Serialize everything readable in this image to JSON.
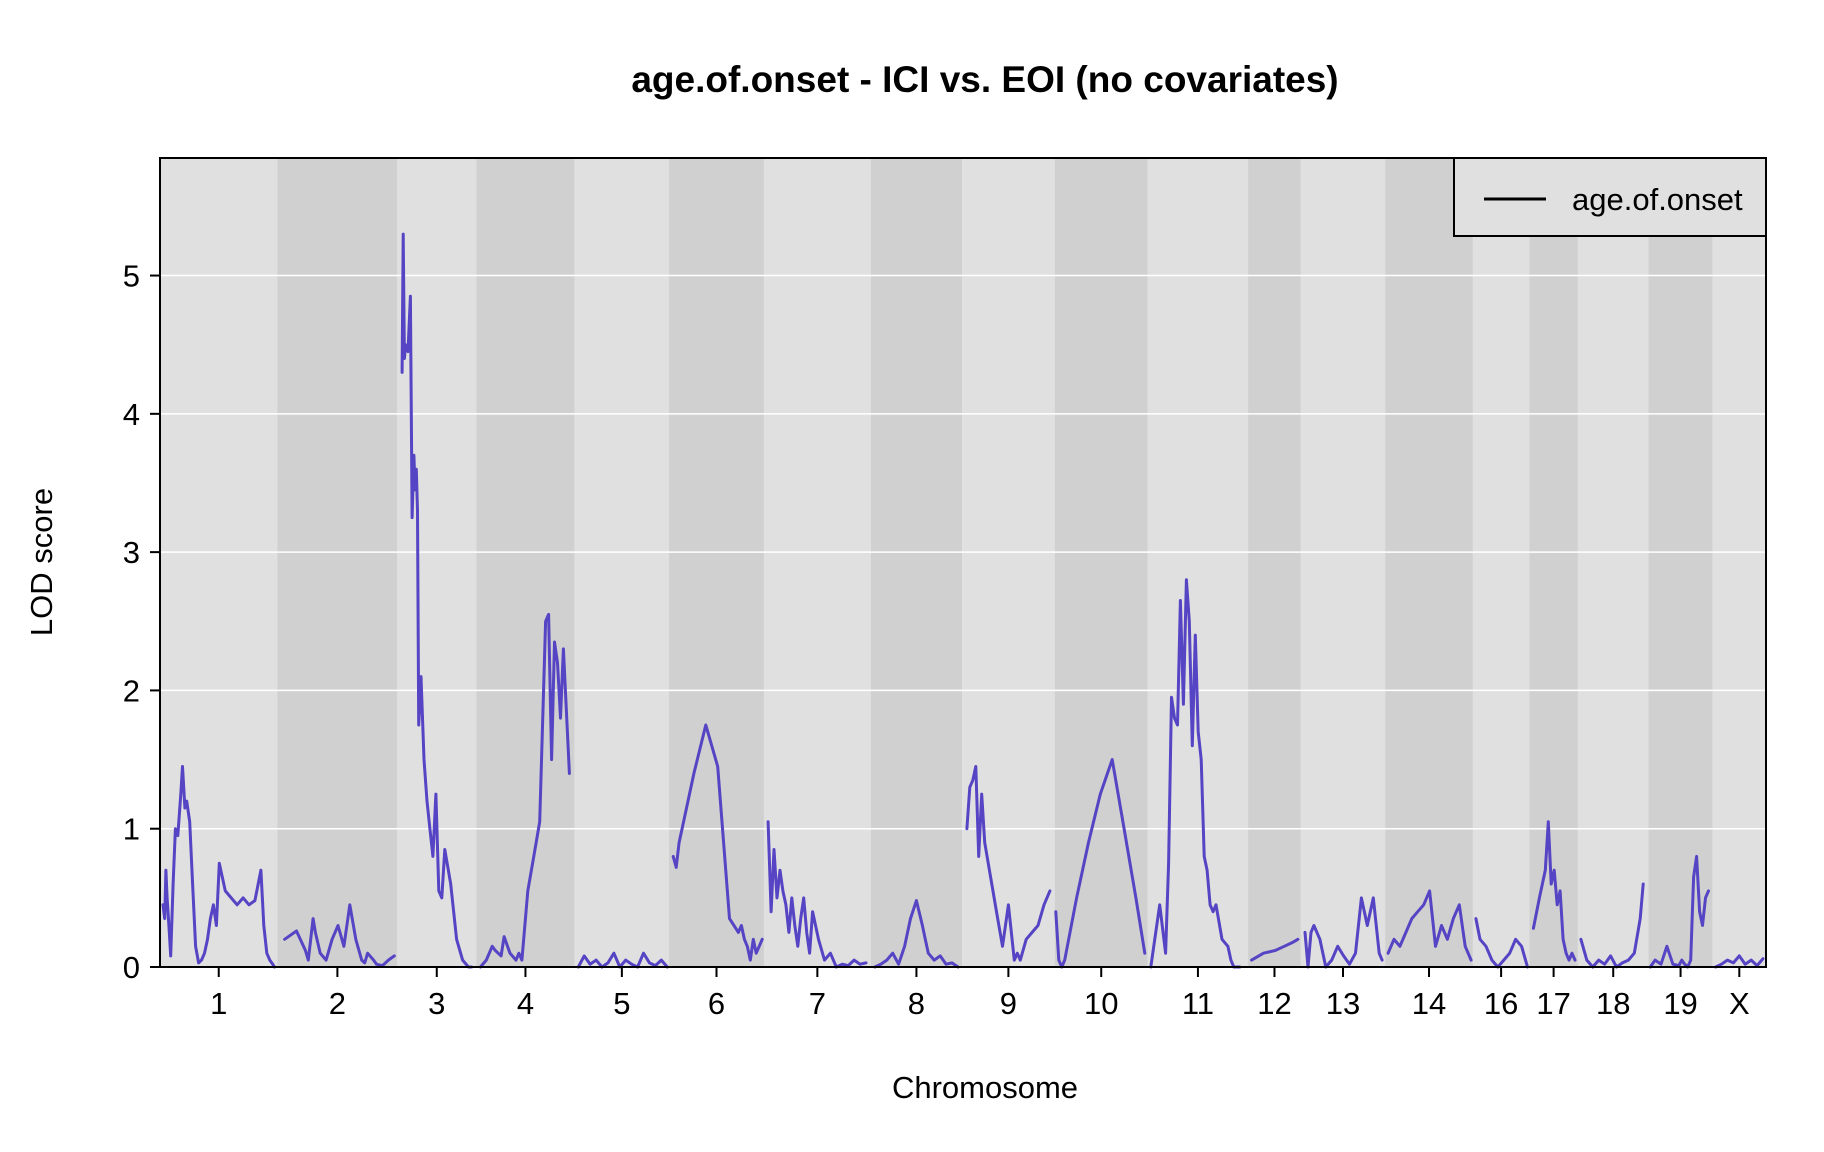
{
  "chart_data": {
    "type": "line",
    "title": "age.of.onset - ICI vs. EOI (no covariates)",
    "xlabel": "Chromosome",
    "ylabel": "LOD score",
    "ylim": [
      0,
      5.85
    ],
    "yticks": [
      0,
      1,
      2,
      3,
      4,
      5
    ],
    "grid": "horizontal",
    "legend": {
      "position": "top-right",
      "entries": [
        "age.of.onset"
      ]
    },
    "colors": {
      "line": "#5544c4",
      "band_light": "#e0e0e0",
      "band_dark": "#d0d0d0",
      "grid": "#ffffff",
      "legend_bg": "#e0e0e0"
    },
    "chromosomes": [
      {
        "name": "1",
        "start": 0,
        "end": 198.0
      },
      {
        "name": "2",
        "start": 198.0,
        "end": 400.0
      },
      {
        "name": "3",
        "start": 400.0,
        "end": 533.0
      },
      {
        "name": "4",
        "start": 533.0,
        "end": 699.0
      },
      {
        "name": "5",
        "start": 699.0,
        "end": 858.0
      },
      {
        "name": "6",
        "start": 858.0,
        "end": 1018.0
      },
      {
        "name": "7",
        "start": 1018.0,
        "end": 1198.0
      },
      {
        "name": "8",
        "start": 1198.0,
        "end": 1352.0
      },
      {
        "name": "9",
        "start": 1352.0,
        "end": 1508.0
      },
      {
        "name": "10",
        "start": 1508.0,
        "end": 1665.0
      },
      {
        "name": "11",
        "start": 1665.0,
        "end": 1834.0
      },
      {
        "name": "12",
        "start": 1834.0,
        "end": 1923.0
      },
      {
        "name": "13",
        "start": 1923.0,
        "end": 2065.0
      },
      {
        "name": "14",
        "start": 2065.0,
        "end": 2213.0
      },
      {
        "name": "16",
        "start": 2213.0,
        "end": 2308.0
      },
      {
        "name": "17",
        "start": 2308.0,
        "end": 2390.0
      },
      {
        "name": "18",
        "start": 2390.0,
        "end": 2509.0
      },
      {
        "name": "19",
        "start": 2509.0,
        "end": 2617.0
      },
      {
        "name": "X",
        "start": 2617.0,
        "end": 2707.0
      }
    ],
    "series": [
      {
        "name": "age.of.onset",
        "segments": [
          {
            "chr": "1",
            "x": [
              5,
              8,
              10,
              12,
              15,
              18,
              22,
              26,
              30,
              35,
              38,
              42,
              45,
              50,
              55,
              60,
              65,
              70,
              75,
              80,
              85,
              90,
              95,
              100,
              110,
              120,
              130,
              140,
              150,
              160,
              170,
              175,
              180,
              185,
              190,
              193
            ],
            "y": [
              0.45,
              0.35,
              0.7,
              0.5,
              0.3,
              0.08,
              0.6,
              1.0,
              0.95,
              1.25,
              1.45,
              1.15,
              1.2,
              1.05,
              0.6,
              0.15,
              0.03,
              0.05,
              0.1,
              0.2,
              0.35,
              0.45,
              0.3,
              0.75,
              0.55,
              0.5,
              0.45,
              0.5,
              0.45,
              0.48,
              0.7,
              0.3,
              0.1,
              0.05,
              0.02,
              0.0
            ]
          },
          {
            "chr": "2",
            "x": [
              210,
              230,
              245,
              250,
              258,
              262,
              270,
              280,
              290,
              300,
              310,
              320,
              330,
              340,
              345,
              350,
              360,
              365,
              375,
              385,
              395
            ],
            "y": [
              0.2,
              0.26,
              0.12,
              0.05,
              0.35,
              0.25,
              0.1,
              0.05,
              0.2,
              0.3,
              0.15,
              0.45,
              0.2,
              0.05,
              0.03,
              0.1,
              0.05,
              0.02,
              0.01,
              0.05,
              0.08
            ]
          },
          {
            "chr": "3",
            "x": [
              408,
              410,
              412,
              414,
              418,
              422,
              425,
              428,
              430,
              432,
              434,
              436,
              440,
              445,
              450,
              455,
              460,
              465,
              470,
              475,
              480,
              490,
              500,
              510,
              520,
              525
            ],
            "y": [
              4.3,
              5.3,
              4.4,
              4.5,
              4.45,
              4.85,
              3.25,
              3.7,
              3.45,
              3.6,
              3.3,
              1.75,
              2.1,
              1.5,
              1.2,
              1.0,
              0.8,
              1.25,
              0.55,
              0.5,
              0.85,
              0.6,
              0.2,
              0.05,
              0.0,
              0.0
            ]
          },
          {
            "chr": "4",
            "x": [
              540,
              550,
              560,
              565,
              570,
              575,
              580,
              590,
              600,
              605,
              610,
              620,
              630,
              640,
              650,
              655,
              660,
              665,
              670,
              675,
              680,
              690
            ],
            "y": [
              0.0,
              0.05,
              0.15,
              0.12,
              0.1,
              0.08,
              0.22,
              0.1,
              0.05,
              0.1,
              0.05,
              0.55,
              0.8,
              1.05,
              2.5,
              2.55,
              1.5,
              2.35,
              2.2,
              1.8,
              2.3,
              1.4
            ]
          },
          {
            "chr": "5",
            "x": [
              705,
              715,
              725,
              735,
              745,
              755,
              765,
              775,
              785,
              795,
              805,
              815,
              825,
              835,
              845,
              855
            ],
            "y": [
              0.0,
              0.08,
              0.02,
              0.05,
              0.0,
              0.03,
              0.1,
              0.0,
              0.05,
              0.02,
              0.0,
              0.1,
              0.03,
              0.01,
              0.05,
              0.0
            ]
          },
          {
            "chr": "6",
            "x": [
              865,
              870,
              875,
              880,
              890,
              900,
              920,
              940,
              960,
              975,
              980,
              985,
              990,
              995,
              1000,
              1005,
              1010,
              1015
            ],
            "y": [
              0.8,
              0.72,
              0.9,
              1.0,
              1.2,
              1.4,
              1.75,
              1.45,
              0.35,
              0.25,
              0.3,
              0.2,
              0.15,
              0.05,
              0.2,
              0.1,
              0.15,
              0.2
            ]
          },
          {
            "chr": "7",
            "x": [
              1025,
              1030,
              1035,
              1040,
              1045,
              1050,
              1055,
              1060,
              1065,
              1070,
              1075,
              1080,
              1085,
              1090,
              1095,
              1100,
              1110,
              1120,
              1130,
              1140,
              1150,
              1160,
              1170,
              1180,
              1190
            ],
            "y": [
              1.05,
              0.4,
              0.85,
              0.5,
              0.7,
              0.55,
              0.45,
              0.25,
              0.5,
              0.3,
              0.15,
              0.35,
              0.5,
              0.25,
              0.1,
              0.4,
              0.2,
              0.05,
              0.1,
              0.0,
              0.02,
              0.01,
              0.05,
              0.02,
              0.03
            ]
          },
          {
            "chr": "8",
            "x": [
              1205,
              1215,
              1225,
              1235,
              1245,
              1255,
              1265,
              1275,
              1285,
              1290,
              1295,
              1305,
              1315,
              1325,
              1335,
              1345
            ],
            "y": [
              0.0,
              0.02,
              0.05,
              0.1,
              0.02,
              0.15,
              0.35,
              0.48,
              0.3,
              0.2,
              0.1,
              0.05,
              0.08,
              0.02,
              0.03,
              0.0
            ]
          },
          {
            "chr": "9",
            "x": [
              1360,
              1365,
              1370,
              1375,
              1380,
              1385,
              1390,
              1400,
              1410,
              1420,
              1430,
              1440,
              1445,
              1450,
              1460,
              1470,
              1480,
              1490,
              1500
            ],
            "y": [
              1.0,
              1.3,
              1.35,
              1.45,
              0.8,
              1.25,
              0.9,
              0.65,
              0.4,
              0.15,
              0.45,
              0.05,
              0.1,
              0.05,
              0.2,
              0.25,
              0.3,
              0.45,
              0.55
            ]
          },
          {
            "chr": "10",
            "x": [
              1510,
              1515,
              1520,
              1525,
              1545,
              1565,
              1585,
              1605,
              1625,
              1645,
              1660
            ],
            "y": [
              0.4,
              0.05,
              0.0,
              0.05,
              0.5,
              0.9,
              1.25,
              1.5,
              1.0,
              0.5,
              0.1
            ]
          },
          {
            "chr": "11",
            "x": [
              1670,
              1685,
              1695,
              1700,
              1705,
              1710,
              1715,
              1720,
              1725,
              1730,
              1735,
              1740,
              1745,
              1750,
              1755,
              1760,
              1765,
              1770,
              1775,
              1780,
              1790,
              1800,
              1805,
              1810,
              1815,
              1820
            ],
            "y": [
              0.0,
              0.45,
              0.1,
              0.75,
              1.95,
              1.8,
              1.75,
              2.65,
              1.9,
              2.8,
              2.5,
              1.6,
              2.4,
              1.7,
              1.5,
              0.8,
              0.7,
              0.45,
              0.4,
              0.45,
              0.2,
              0.15,
              0.05,
              0.0,
              0.0,
              0.0
            ]
          },
          {
            "chr": "12",
            "x": [
              1840,
              1860,
              1880,
              1895,
              1910,
              1918
            ],
            "y": [
              0.05,
              0.1,
              0.12,
              0.15,
              0.18,
              0.2
            ]
          },
          {
            "chr": "13",
            "x": [
              1930,
              1935,
              1940,
              1945,
              1955,
              1965,
              1975,
              1985,
              1995,
              2005,
              2015,
              2025,
              2035,
              2045,
              2055,
              2060
            ],
            "y": [
              0.25,
              0.0,
              0.25,
              0.3,
              0.2,
              0.0,
              0.05,
              0.15,
              0.08,
              0.02,
              0.1,
              0.5,
              0.3,
              0.5,
              0.1,
              0.05
            ]
          },
          {
            "chr": "14",
            "x": [
              2070,
              2075,
              2080,
              2090,
              2100,
              2110,
              2120,
              2130,
              2140,
              2150,
              2160,
              2170,
              2180,
              2190,
              2200,
              2210
            ],
            "y": [
              0.1,
              0.15,
              0.2,
              0.15,
              0.25,
              0.35,
              0.4,
              0.45,
              0.55,
              0.15,
              0.3,
              0.2,
              0.35,
              0.45,
              0.15,
              0.05
            ]
          },
          {
            "chr": "16",
            "x": [
              2218,
              2225,
              2235,
              2245,
              2255,
              2265,
              2275,
              2285,
              2295,
              2305
            ],
            "y": [
              0.35,
              0.2,
              0.15,
              0.05,
              0.0,
              0.05,
              0.1,
              0.2,
              0.15,
              0.0
            ]
          },
          {
            "chr": "17",
            "x": [
              2315,
              2325,
              2335,
              2340,
              2345,
              2350,
              2355,
              2360,
              2365,
              2370,
              2375,
              2380,
              2385
            ],
            "y": [
              0.28,
              0.5,
              0.7,
              1.05,
              0.6,
              0.7,
              0.45,
              0.55,
              0.2,
              0.1,
              0.05,
              0.1,
              0.05
            ]
          },
          {
            "chr": "18",
            "x": [
              2395,
              2405,
              2415,
              2425,
              2435,
              2445,
              2455,
              2465,
              2475,
              2485,
              2495,
              2500
            ],
            "y": [
              0.2,
              0.05,
              0.0,
              0.05,
              0.02,
              0.08,
              0.0,
              0.03,
              0.05,
              0.1,
              0.35,
              0.6
            ]
          },
          {
            "chr": "19",
            "x": [
              2512,
              2520,
              2530,
              2540,
              2550,
              2560,
              2565,
              2570,
              2575,
              2580,
              2585,
              2590,
              2595,
              2600,
              2605,
              2610
            ],
            "y": [
              0.0,
              0.05,
              0.02,
              0.15,
              0.02,
              0.01,
              0.05,
              0.02,
              0.0,
              0.05,
              0.65,
              0.8,
              0.4,
              0.3,
              0.5,
              0.55
            ]
          },
          {
            "chr": "X",
            "x": [
              2622,
              2632,
              2642,
              2652,
              2662,
              2672,
              2682,
              2692,
              2702
            ],
            "y": [
              0.0,
              0.02,
              0.05,
              0.03,
              0.08,
              0.02,
              0.05,
              0.01,
              0.06
            ]
          }
        ]
      }
    ]
  }
}
